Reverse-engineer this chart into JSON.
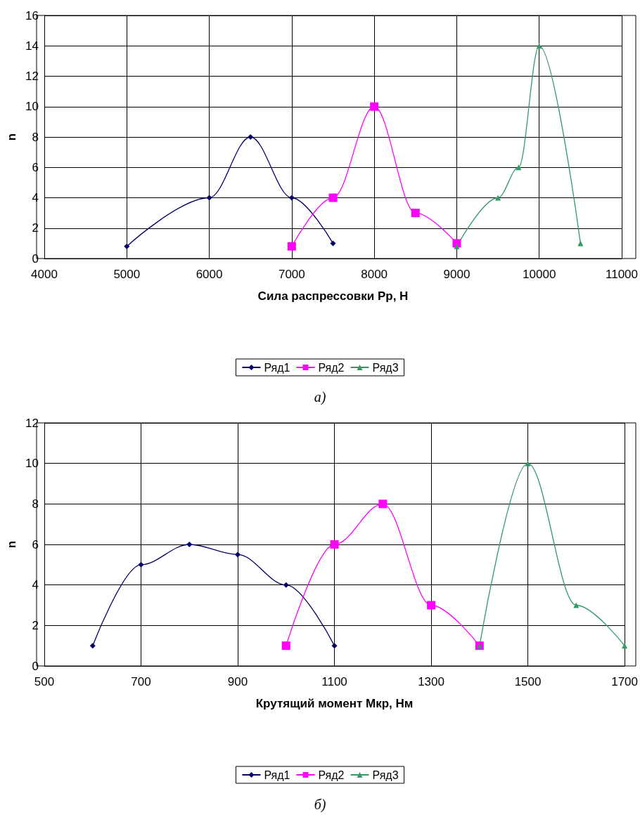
{
  "chart_data": [
    {
      "type": "line",
      "xlabel": "Сила распрессовки Рр, Н",
      "ylabel": "n",
      "xlim": [
        4000,
        11000
      ],
      "xticks": [
        4000,
        5000,
        6000,
        7000,
        8000,
        9000,
        10000,
        11000
      ],
      "ylim": [
        0,
        16
      ],
      "yticks": [
        0,
        2,
        4,
        6,
        8,
        10,
        12,
        14,
        16
      ],
      "grid": true,
      "legend": "bottom",
      "annotations": [
        "а)"
      ],
      "series": [
        {
          "name": "Ряд1",
          "color": "#000066",
          "marker": "diamond",
          "x": [
            5000,
            6000,
            6500,
            7000,
            7500
          ],
          "values": [
            0.8,
            4,
            8,
            4,
            1
          ]
        },
        {
          "name": "Ряд2",
          "color": "#ff00ff",
          "marker": "square",
          "x": [
            7000,
            7500,
            8000,
            8500,
            9000
          ],
          "values": [
            0.8,
            4,
            10,
            3,
            1
          ]
        },
        {
          "name": "Ряд3",
          "color": "#339966",
          "marker": "triangle",
          "x": [
            9000,
            9500,
            9750,
            10000,
            10500
          ],
          "values": [
            0.8,
            4,
            6,
            14,
            1
          ]
        }
      ]
    },
    {
      "type": "line",
      "xlabel": "Крутящий момент Мкр, Нм",
      "ylabel": "n",
      "xlim": [
        500,
        1700
      ],
      "xticks": [
        500,
        700,
        900,
        1100,
        1300,
        1500,
        1700
      ],
      "ylim": [
        0,
        12
      ],
      "yticks": [
        0,
        2,
        4,
        6,
        8,
        10,
        12
      ],
      "grid": true,
      "legend": "bottom",
      "annotations": [
        "б)"
      ],
      "series": [
        {
          "name": "Ряд1",
          "color": "#000066",
          "marker": "diamond",
          "x": [
            600,
            700,
            800,
            900,
            1000,
            1100
          ],
          "values": [
            1,
            5,
            6,
            5.5,
            4,
            1
          ]
        },
        {
          "name": "Ряд2",
          "color": "#ff00ff",
          "marker": "square",
          "x": [
            1000,
            1100,
            1200,
            1300,
            1400
          ],
          "values": [
            1,
            6,
            8,
            3,
            1
          ]
        },
        {
          "name": "Ряд3",
          "color": "#339966",
          "marker": "triangle",
          "x": [
            1400,
            1500,
            1600,
            1700
          ],
          "values": [
            1,
            10,
            3,
            1
          ]
        }
      ]
    }
  ]
}
